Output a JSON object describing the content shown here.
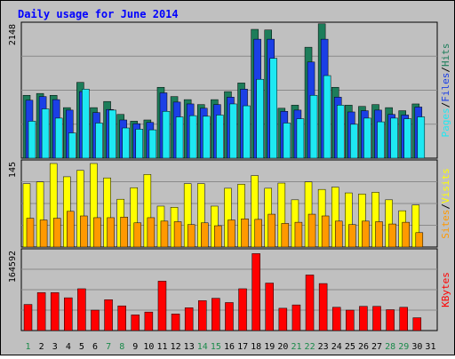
{
  "title": "Daily usage for June 2014",
  "colors": {
    "frame_bg": "#c0c0c0",
    "title": "#0000ff",
    "grid": "#8a8a8a",
    "hits": "#1d7d5a",
    "files": "#1b3fe6",
    "pages": "#1ee8f2",
    "visits": "#ffff00",
    "sites": "#ff9900",
    "kbytes": "#ff0000",
    "weekend_day": "#1a8a4a",
    "weekday": "#000000"
  },
  "chart_data": [
    {
      "type": "bar",
      "name": "hits-files-pages",
      "max_label": "2148",
      "ylim": [
        0,
        2148
      ],
      "x": [
        1,
        2,
        3,
        4,
        5,
        6,
        7,
        8,
        9,
        10,
        11,
        12,
        13,
        14,
        15,
        16,
        17,
        18,
        19,
        20,
        21,
        22,
        23,
        24,
        25,
        26,
        27,
        28,
        29,
        30,
        31
      ],
      "series": [
        {
          "name": "Hits",
          "color": "#1d7d5a",
          "values": [
            1020,
            1050,
            1020,
            820,
            1230,
            820,
            920,
            710,
            600,
            620,
            1150,
            1000,
            950,
            870,
            950,
            1080,
            1220,
            2090,
            2080,
            810,
            860,
            1800,
            2180,
            1150,
            860,
            840,
            870,
            820,
            770,
            880,
            0
          ]
        },
        {
          "name": "Files",
          "color": "#1b3fe6",
          "values": [
            940,
            1000,
            950,
            780,
            1080,
            740,
            790,
            620,
            560,
            580,
            1060,
            910,
            880,
            810,
            870,
            990,
            1120,
            1930,
            1930,
            760,
            780,
            1560,
            1930,
            990,
            750,
            770,
            780,
            710,
            700,
            830,
            0
          ]
        },
        {
          "name": "Pages",
          "color": "#1ee8f2",
          "values": [
            600,
            800,
            650,
            410,
            1120,
            570,
            780,
            490,
            470,
            460,
            760,
            670,
            690,
            680,
            700,
            880,
            850,
            1280,
            1620,
            570,
            640,
            1020,
            1340,
            860,
            550,
            650,
            590,
            650,
            640,
            670,
            0
          ]
        }
      ],
      "axis_labels": [
        {
          "text": "Pages",
          "color": "#1ee8f2"
        },
        {
          "text": "/",
          "color": "#000000"
        },
        {
          "text": "Files",
          "color": "#1b3fe6"
        },
        {
          "text": "/",
          "color": "#000000"
        },
        {
          "text": "Hits",
          "color": "#1d7d5a"
        }
      ]
    },
    {
      "type": "bar",
      "name": "visits-sites",
      "max_label": "145",
      "ylim": [
        0,
        145
      ],
      "x": [
        1,
        2,
        3,
        4,
        5,
        6,
        7,
        8,
        9,
        10,
        11,
        12,
        13,
        14,
        15,
        16,
        17,
        18,
        19,
        20,
        21,
        22,
        23,
        24,
        25,
        26,
        27,
        28,
        29,
        30,
        31
      ],
      "series": [
        {
          "name": "Visits",
          "color": "#ffff00",
          "values": [
            110,
            113,
            145,
            122,
            133,
            145,
            120,
            83,
            103,
            126,
            71,
            69,
            110,
            110,
            71,
            102,
            109,
            124,
            102,
            111,
            82,
            113,
            100,
            104,
            94,
            92,
            95,
            82,
            63,
            73,
            0
          ]
        },
        {
          "name": "Sites",
          "color": "#ff9900",
          "values": [
            50,
            47,
            50,
            62,
            54,
            51,
            51,
            52,
            42,
            51,
            45,
            44,
            39,
            42,
            37,
            47,
            49,
            48,
            57,
            41,
            43,
            57,
            54,
            45,
            39,
            45,
            44,
            40,
            43,
            25,
            0
          ]
        }
      ],
      "axis_labels": [
        {
          "text": "Sites",
          "color": "#ff9900"
        },
        {
          "text": "/",
          "color": "#000000"
        },
        {
          "text": "Visits",
          "color": "#ffff00"
        }
      ]
    },
    {
      "type": "bar",
      "name": "kbytes",
      "max_label": "164592",
      "ylim": [
        0,
        164592
      ],
      "x": [
        1,
        2,
        3,
        4,
        5,
        6,
        7,
        8,
        9,
        10,
        11,
        12,
        13,
        14,
        15,
        16,
        17,
        18,
        19,
        20,
        21,
        22,
        23,
        24,
        25,
        26,
        27,
        28,
        29,
        30,
        31
      ],
      "series": [
        {
          "name": "KBytes",
          "color": "#ff0000",
          "values": [
            55000,
            80000,
            80000,
            69000,
            88000,
            43000,
            65000,
            52000,
            33000,
            39000,
            104000,
            35000,
            48000,
            63000,
            68000,
            59000,
            88000,
            162000,
            100000,
            47000,
            54000,
            117000,
            99000,
            49000,
            43000,
            51000,
            51000,
            44000,
            49000,
            27000,
            0
          ]
        }
      ],
      "axis_labels": [
        {
          "text": "KBytes",
          "color": "#ff0000"
        }
      ]
    }
  ],
  "days": [
    {
      "label": "1",
      "weekend": true
    },
    {
      "label": "2",
      "weekend": false
    },
    {
      "label": "3",
      "weekend": false
    },
    {
      "label": "4",
      "weekend": false
    },
    {
      "label": "5",
      "weekend": false
    },
    {
      "label": "6",
      "weekend": false
    },
    {
      "label": "7",
      "weekend": true
    },
    {
      "label": "8",
      "weekend": true
    },
    {
      "label": "9",
      "weekend": false
    },
    {
      "label": "10",
      "weekend": false
    },
    {
      "label": "11",
      "weekend": false
    },
    {
      "label": "12",
      "weekend": false
    },
    {
      "label": "13",
      "weekend": false
    },
    {
      "label": "14",
      "weekend": true
    },
    {
      "label": "15",
      "weekend": true
    },
    {
      "label": "16",
      "weekend": false
    },
    {
      "label": "17",
      "weekend": false
    },
    {
      "label": "18",
      "weekend": false
    },
    {
      "label": "19",
      "weekend": false
    },
    {
      "label": "20",
      "weekend": false
    },
    {
      "label": "21",
      "weekend": true
    },
    {
      "label": "22",
      "weekend": true
    },
    {
      "label": "23",
      "weekend": false
    },
    {
      "label": "24",
      "weekend": false
    },
    {
      "label": "25",
      "weekend": false
    },
    {
      "label": "26",
      "weekend": false
    },
    {
      "label": "27",
      "weekend": false
    },
    {
      "label": "28",
      "weekend": true
    },
    {
      "label": "29",
      "weekend": true
    },
    {
      "label": "30",
      "weekend": false
    },
    {
      "label": "31",
      "weekend": false
    }
  ]
}
